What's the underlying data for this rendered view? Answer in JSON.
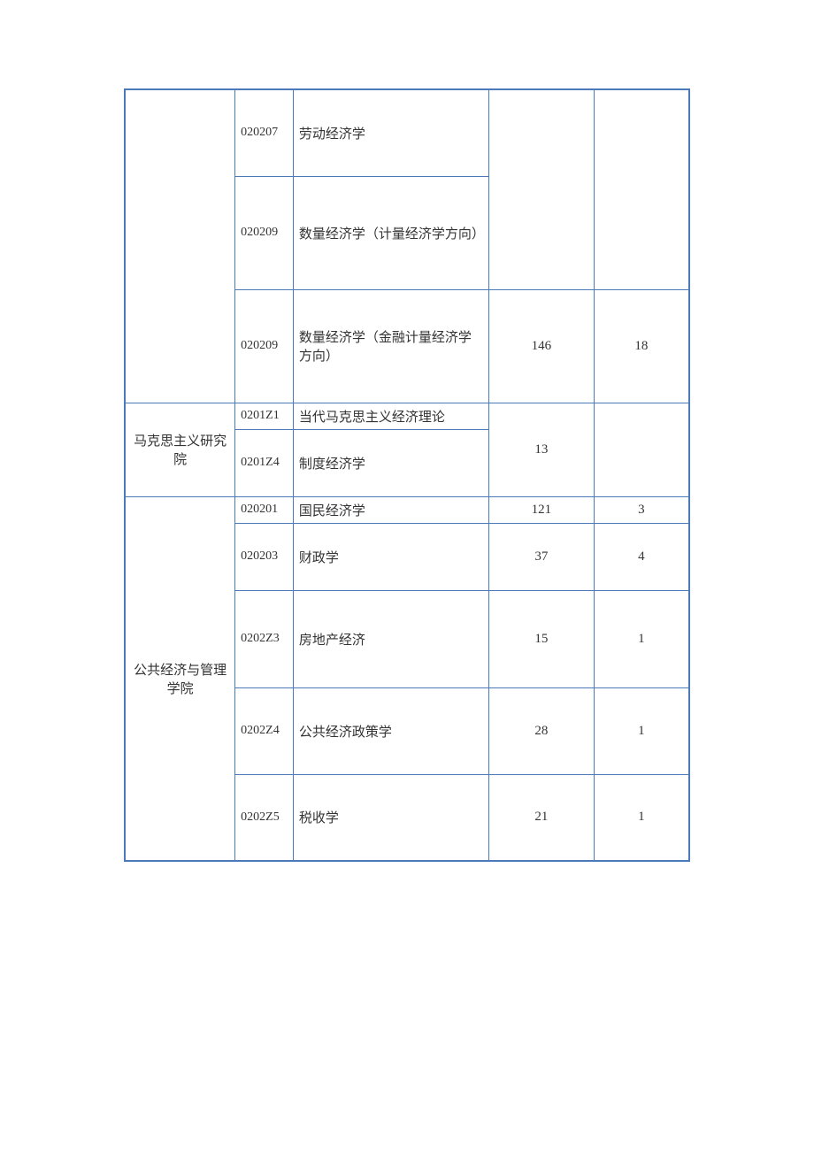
{
  "table": {
    "border_color": "#4a7ab8",
    "text_color": "#333333",
    "font_family": "SimSun",
    "rows": [
      {
        "dept": "",
        "code": "020207",
        "name": "劳动经济学",
        "num1": "",
        "num2": ""
      },
      {
        "code": "020209",
        "name": "数量经济学（计量经济学方向）"
      },
      {
        "code": "020209",
        "name": "数量经济学（金融计量经济学方向）",
        "num1": "146",
        "num2": "18"
      },
      {
        "dept": "马克思主义研究院",
        "code": "0201Z1",
        "name": "当代马克思主义经济理论",
        "num1": "13",
        "num2": ""
      },
      {
        "code": "0201Z4",
        "name": "制度经济学"
      },
      {
        "dept": "公共经济与管理学院",
        "code": "020201",
        "name": "国民经济学",
        "num1": "121",
        "num2": "3"
      },
      {
        "code": "020203",
        "name": "财政学",
        "num1": "37",
        "num2": "4"
      },
      {
        "code": "0202Z3",
        "name": "房地产经济",
        "num1": "15",
        "num2": "1"
      },
      {
        "code": "0202Z4",
        "name": "公共经济政策学",
        "num1": "28",
        "num2": "1"
      },
      {
        "code": "0202Z5",
        "name": "税收学",
        "num1": "21",
        "num2": "1"
      }
    ]
  }
}
